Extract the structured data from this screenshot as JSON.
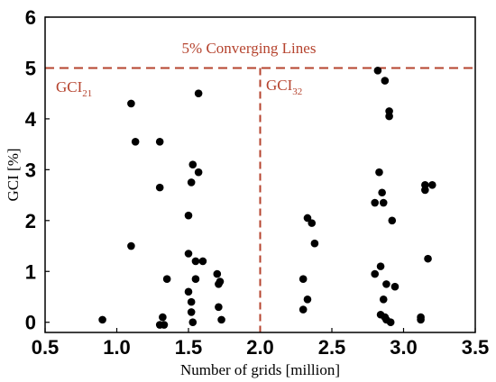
{
  "chart_data": {
    "type": "scatter",
    "xlabel": "Number of grids [million]",
    "ylabel": "GCI [%]",
    "xlim": [
      0.5,
      3.5
    ],
    "ylim": [
      -0.2,
      6
    ],
    "x_ticks": [
      "0.5",
      "1.0",
      "1.5",
      "2.0",
      "2.5",
      "3.0",
      "3.5"
    ],
    "y_ticks": [
      "0",
      "1",
      "2",
      "3",
      "4",
      "5",
      "6"
    ],
    "grid": false,
    "colors": {
      "points": "#000000",
      "reference_lines": "#b5432e"
    },
    "annotations": {
      "converging": "5% Converging Lines",
      "gci21_main": "GCI",
      "gci21_sub": "21",
      "gci32_main": "GCI",
      "gci32_sub": "32"
    },
    "reference_lines": [
      {
        "orientation": "horizontal",
        "value": 5,
        "style": "dashed"
      },
      {
        "orientation": "vertical",
        "value": 2.0,
        "style": "dashed"
      }
    ],
    "points": [
      [
        0.9,
        0.05
      ],
      [
        1.1,
        1.5
      ],
      [
        1.1,
        4.3
      ],
      [
        1.13,
        3.55
      ],
      [
        1.3,
        2.65
      ],
      [
        1.3,
        3.55
      ],
      [
        1.3,
        -0.05
      ],
      [
        1.32,
        0.1
      ],
      [
        1.33,
        -0.05
      ],
      [
        1.35,
        0.85
      ],
      [
        1.5,
        2.1
      ],
      [
        1.5,
        1.35
      ],
      [
        1.5,
        0.6
      ],
      [
        1.52,
        0.4
      ],
      [
        1.52,
        0.2
      ],
      [
        1.53,
        0.0
      ],
      [
        1.52,
        2.75
      ],
      [
        1.53,
        3.1
      ],
      [
        1.55,
        0.85
      ],
      [
        1.55,
        1.2
      ],
      [
        1.57,
        2.95
      ],
      [
        1.57,
        4.5
      ],
      [
        1.6,
        1.2
      ],
      [
        1.7,
        0.95
      ],
      [
        1.71,
        0.75
      ],
      [
        1.72,
        0.8
      ],
      [
        1.71,
        0.3
      ],
      [
        1.73,
        0.05
      ],
      [
        2.3,
        0.85
      ],
      [
        2.3,
        0.25
      ],
      [
        2.33,
        2.05
      ],
      [
        2.33,
        0.45
      ],
      [
        2.36,
        1.95
      ],
      [
        2.38,
        1.55
      ],
      [
        2.8,
        2.35
      ],
      [
        2.8,
        0.95
      ],
      [
        2.82,
        4.95
      ],
      [
        2.83,
        2.95
      ],
      [
        2.84,
        1.1
      ],
      [
        2.84,
        0.15
      ],
      [
        2.85,
        2.55
      ],
      [
        2.86,
        2.35
      ],
      [
        2.86,
        0.45
      ],
      [
        2.87,
        0.1
      ],
      [
        2.87,
        4.75
      ],
      [
        2.88,
        0.75
      ],
      [
        2.88,
        0.05
      ],
      [
        2.9,
        4.15
      ],
      [
        2.9,
        4.05
      ],
      [
        2.91,
        0.0
      ],
      [
        2.92,
        2.0
      ],
      [
        2.94,
        0.7
      ],
      [
        3.12,
        0.1
      ],
      [
        3.12,
        0.05
      ],
      [
        3.15,
        2.6
      ],
      [
        3.15,
        2.7
      ],
      [
        3.17,
        1.25
      ],
      [
        3.2,
        2.7
      ]
    ]
  }
}
